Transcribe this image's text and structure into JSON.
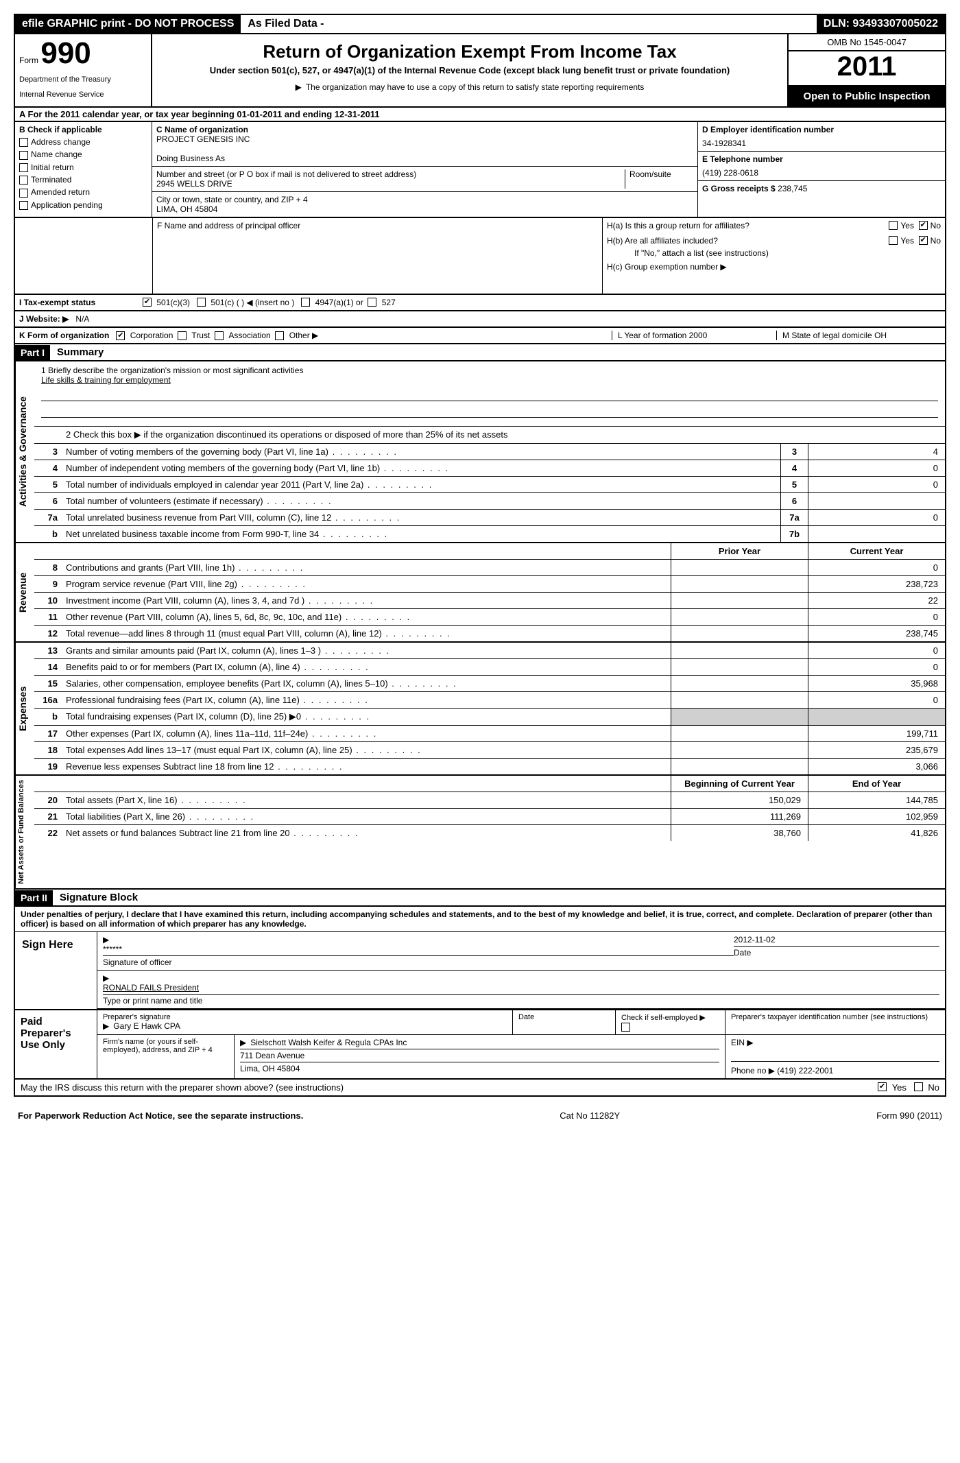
{
  "topbar": {
    "left": "efile GRAPHIC print - DO NOT PROCESS",
    "mid": "As Filed Data -",
    "right": "DLN: 93493307005022"
  },
  "header": {
    "form_label": "Form",
    "form_num": "990",
    "dept1": "Department of the Treasury",
    "dept2": "Internal Revenue Service",
    "title": "Return of Organization Exempt From Income Tax",
    "sub": "Under section 501(c), 527, or 4947(a)(1) of the Internal Revenue Code (except black lung benefit trust or private foundation)",
    "note": "The organization may have to use a copy of this return to satisfy state reporting requirements",
    "omb": "OMB No 1545-0047",
    "year": "2011",
    "open": "Open to Public Inspection"
  },
  "section_a": "A  For the 2011 calendar year, or tax year beginning 01-01-2011    and ending 12-31-2011",
  "colB": {
    "label": "B  Check if applicable",
    "items": [
      "Address change",
      "Name change",
      "Initial return",
      "Terminated",
      "Amended return",
      "Application pending"
    ]
  },
  "colC": {
    "name_lbl": "C Name of organization",
    "name": "PROJECT GENESIS INC",
    "dba_lbl": "Doing Business As",
    "addr_lbl": "Number and street (or P O  box if mail is not delivered to street address)",
    "room_lbl": "Room/suite",
    "addr": "2945 WELLS DRIVE",
    "city_lbl": "City or town, state or country, and ZIP + 4",
    "city": "LIMA, OH  45804",
    "officer_lbl": "F  Name and address of principal officer"
  },
  "colD": {
    "d_lbl": "D Employer identification number",
    "d_val": "34-1928341",
    "e_lbl": "E Telephone number",
    "e_val": "(419) 228-0618",
    "g_lbl": "G Gross receipts $",
    "g_val": "238,745"
  },
  "h": {
    "a_lbl": "H(a)  Is this a group return for affiliates?",
    "b_lbl": "H(b)  Are all affiliates included?",
    "b_note": "If \"No,\" attach a list  (see instructions)",
    "c_lbl": "H(c)   Group exemption number ▶",
    "yes": "Yes",
    "no": "No"
  },
  "row_i": {
    "lbl": "I    Tax-exempt status",
    "opt1": "501(c)(3)",
    "opt2": "501(c) (   ) ◀ (insert no )",
    "opt3": "4947(a)(1) or",
    "opt4": "527"
  },
  "row_j": {
    "lbl": "J   Website: ▶",
    "val": "N/A"
  },
  "row_k": {
    "lbl": "K Form of organization",
    "opts": [
      "Corporation",
      "Trust",
      "Association",
      "Other ▶"
    ],
    "l_lbl": "L Year of formation  2000",
    "m_lbl": "M State of legal domicile  OH"
  },
  "parts": {
    "p1": "Part I",
    "p1_title": "Summary",
    "p2": "Part II",
    "p2_title": "Signature Block"
  },
  "mission": {
    "lbl": "1    Briefly describe the organization's mission or most significant activities",
    "text": "Life skills & training for employment"
  },
  "discontinue": "2    Check this box ▶       if the organization discontinued its operations or disposed of more than 25% of its net assets",
  "gov_rows": [
    {
      "n": "3",
      "d": "Number of voting members of the governing body (Part VI, line 1a)",
      "r": "3",
      "v": "4"
    },
    {
      "n": "4",
      "d": "Number of independent voting members of the governing body (Part VI, line 1b)",
      "r": "4",
      "v": "0"
    },
    {
      "n": "5",
      "d": "Total number of individuals employed in calendar year 2011 (Part V, line 2a)",
      "r": "5",
      "v": "0"
    },
    {
      "n": "6",
      "d": "Total number of volunteers (estimate if necessary)",
      "r": "6",
      "v": ""
    },
    {
      "n": "7a",
      "d": "Total unrelated business revenue from Part VIII, column (C), line 12",
      "r": "7a",
      "v": "0"
    },
    {
      "n": "b",
      "d": "Net unrelated business taxable income from Form 990-T, line 34",
      "r": "7b",
      "v": ""
    }
  ],
  "col_headers": {
    "prior": "Prior Year",
    "curr": "Current Year",
    "beg": "Beginning of Current Year",
    "end": "End of Year"
  },
  "rev_rows": [
    {
      "n": "8",
      "d": "Contributions and grants (Part VIII, line 1h)",
      "p": "",
      "c": "0"
    },
    {
      "n": "9",
      "d": "Program service revenue (Part VIII, line 2g)",
      "p": "",
      "c": "238,723"
    },
    {
      "n": "10",
      "d": "Investment income (Part VIII, column (A), lines 3, 4, and 7d )",
      "p": "",
      "c": "22"
    },
    {
      "n": "11",
      "d": "Other revenue (Part VIII, column (A), lines 5, 6d, 8c, 9c, 10c, and 11e)",
      "p": "",
      "c": "0"
    },
    {
      "n": "12",
      "d": "Total revenue—add lines 8 through 11 (must equal Part VIII, column (A), line 12)",
      "p": "",
      "c": "238,745"
    }
  ],
  "exp_rows": [
    {
      "n": "13",
      "d": "Grants and similar amounts paid (Part IX, column (A), lines 1–3 )",
      "p": "",
      "c": "0"
    },
    {
      "n": "14",
      "d": "Benefits paid to or for members (Part IX, column (A), line 4)",
      "p": "",
      "c": "0"
    },
    {
      "n": "15",
      "d": "Salaries, other compensation, employee benefits (Part IX, column (A), lines 5–10)",
      "p": "",
      "c": "35,968"
    },
    {
      "n": "16a",
      "d": "Professional fundraising fees (Part IX, column (A), line 11e)",
      "p": "",
      "c": "0"
    },
    {
      "n": "b",
      "d": "Total fundraising expenses (Part IX, column (D), line 25) ▶0",
      "p": "shaded",
      "c": "shaded"
    },
    {
      "n": "17",
      "d": "Other expenses (Part IX, column (A), lines 11a–11d, 11f–24e)",
      "p": "",
      "c": "199,711"
    },
    {
      "n": "18",
      "d": "Total expenses  Add lines 13–17 (must equal Part IX, column (A), line 25)",
      "p": "",
      "c": "235,679"
    },
    {
      "n": "19",
      "d": "Revenue less expenses  Subtract line 18 from line 12",
      "p": "",
      "c": "3,066"
    }
  ],
  "net_rows": [
    {
      "n": "20",
      "d": "Total assets (Part X, line 16)",
      "p": "150,029",
      "c": "144,785"
    },
    {
      "n": "21",
      "d": "Total liabilities (Part X, line 26)",
      "p": "111,269",
      "c": "102,959"
    },
    {
      "n": "22",
      "d": "Net assets or fund balances  Subtract line 21 from line 20",
      "p": "38,760",
      "c": "41,826"
    }
  ],
  "vert": {
    "gov": "Activities & Governance",
    "rev": "Revenue",
    "exp": "Expenses",
    "net": "Net Assets or Fund Balances"
  },
  "sig": {
    "perjury": "Under penalties of perjury, I declare that I have examined this return, including accompanying schedules and statements, and to the best of my knowledge and belief, it is true, correct, and complete. Declaration of preparer (other than officer) is based on all information of which preparer has any knowledge.",
    "sign_here": "Sign Here",
    "stars": "******",
    "sig_lbl": "Signature of officer",
    "date": "2012-11-02",
    "date_lbl": "Date",
    "name": "RONALD FAILS President",
    "name_lbl": "Type or print name and title"
  },
  "prep": {
    "title": "Paid Preparer's Use Only",
    "sig_lbl": "Preparer's signature",
    "name": "Gary E Hawk CPA",
    "date_lbl": "Date",
    "self_lbl": "Check if self-employed ▶",
    "ptin_lbl": "Preparer's taxpayer identification number (see instructions)",
    "firm_lbl": "Firm's name (or yours if self-employed), address, and ZIP + 4",
    "firm": "Sielschott Walsh Keifer & Regula CPAs Inc",
    "addr": "711 Dean Avenue",
    "city": "Lima, OH  45804",
    "ein_lbl": "EIN ▶",
    "phone_lbl": "Phone no  ▶",
    "phone": "(419) 222-2001"
  },
  "irs_q": "May the IRS discuss this return with the preparer shown above? (see instructions)",
  "footer": {
    "left": "For Paperwork Reduction Act Notice, see the separate instructions.",
    "mid": "Cat No  11282Y",
    "right": "Form 990 (2011)"
  }
}
